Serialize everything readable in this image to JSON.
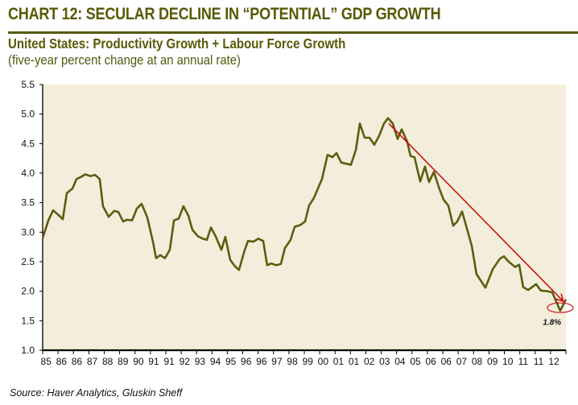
{
  "header": {
    "title": "CHART 12: SECULAR DECLINE IN “POTENTIAL” GDP GROWTH",
    "subtitle": "United States: Productivity Growth + Labour Force Growth",
    "subtitle2": "(five-year percent change at an annual rate)"
  },
  "source": "Source: Haver Analytics, Gluskin Sheff",
  "colors": {
    "title": "#585a06",
    "line": "#5a5e10",
    "plot_bg": "#f3eedb",
    "arrow": "#cc1111"
  },
  "chart_data": {
    "type": "line",
    "title": "United States: Productivity Growth + Labour Force Growth",
    "xlabel": "",
    "ylabel": "",
    "ylim": [
      1.0,
      5.5
    ],
    "yticks": [
      "5.5",
      "5.0",
      "4.5",
      "4.0",
      "3.5",
      "3.0",
      "2.5",
      "2.0",
      "1.5",
      "1.0"
    ],
    "ytick_values": [
      5.5,
      5.0,
      4.5,
      4.0,
      3.5,
      3.0,
      2.5,
      2.0,
      1.5,
      1.0
    ],
    "xticks": [
      "85",
      "86",
      "86",
      "87",
      "88",
      "89",
      "90",
      "91",
      "91",
      "92",
      "93",
      "94",
      "95",
      "96",
      "96",
      "97",
      "98",
      "99",
      "00",
      "01",
      "01",
      "02",
      "03",
      "04",
      "05",
      "06",
      "06",
      "07",
      "08",
      "09",
      "10",
      "11",
      "11",
      "12"
    ],
    "xlim": [
      0,
      34
    ],
    "grid": false,
    "legend": "none",
    "series": [
      {
        "name": "Productivity Growth + Labour Force Growth",
        "x": [
          0.0,
          0.37,
          0.68,
          0.99,
          1.31,
          1.57,
          1.94,
          2.2,
          2.46,
          2.77,
          3.09,
          3.4,
          3.71,
          3.92,
          4.29,
          4.65,
          4.92,
          5.23,
          5.49,
          5.81,
          6.12,
          6.43,
          6.8,
          7.17,
          7.37,
          7.64,
          7.95,
          8.26,
          8.53,
          8.84,
          9.15,
          9.47,
          9.73,
          10.09,
          10.41,
          10.67,
          10.93,
          11.24,
          11.61,
          11.87,
          12.19,
          12.5,
          12.76,
          13.08,
          13.34,
          13.7,
          14.02,
          14.33,
          14.59,
          14.85,
          15.17,
          15.48,
          15.74,
          16.11,
          16.37,
          16.74,
          17.05,
          17.31,
          17.63,
          18.15,
          18.51,
          18.83,
          19.09,
          19.4,
          20.03,
          20.35,
          20.61,
          20.92,
          21.23,
          21.55,
          21.86,
          22.18,
          22.44,
          22.75,
          23.06,
          23.33,
          23.69,
          23.9,
          24.16,
          24.53,
          24.84,
          25.1,
          25.42,
          25.73,
          26.05,
          26.36,
          26.67,
          26.94,
          27.25,
          27.88,
          28.19,
          28.77,
          29.24,
          29.71,
          29.97,
          30.28,
          30.7,
          30.96,
          31.22,
          31.54,
          32.06,
          32.37,
          32.79,
          33.11,
          33.63,
          34.0
        ],
        "values": [
          2.9,
          3.2,
          3.37,
          3.3,
          3.22,
          3.66,
          3.74,
          3.9,
          3.93,
          3.98,
          3.95,
          3.97,
          3.9,
          3.44,
          3.26,
          3.36,
          3.34,
          3.18,
          3.21,
          3.2,
          3.4,
          3.48,
          3.25,
          2.83,
          2.56,
          2.61,
          2.56,
          2.7,
          3.2,
          3.23,
          3.44,
          3.28,
          3.04,
          2.93,
          2.89,
          2.87,
          3.08,
          2.93,
          2.7,
          2.92,
          2.53,
          2.42,
          2.36,
          2.66,
          2.85,
          2.84,
          2.89,
          2.85,
          2.44,
          2.47,
          2.44,
          2.46,
          2.73,
          2.87,
          3.09,
          3.12,
          3.18,
          3.45,
          3.58,
          3.9,
          4.31,
          4.27,
          4.34,
          4.18,
          4.14,
          4.39,
          4.84,
          4.6,
          4.6,
          4.48,
          4.63,
          4.84,
          4.93,
          4.84,
          4.58,
          4.74,
          4.53,
          4.29,
          4.27,
          3.86,
          4.11,
          3.85,
          4.02,
          3.77,
          3.55,
          3.45,
          3.11,
          3.18,
          3.35,
          2.77,
          2.29,
          2.06,
          2.37,
          2.55,
          2.59,
          2.5,
          2.41,
          2.45,
          2.07,
          2.02,
          2.12,
          2.01,
          2.0,
          1.98,
          1.67,
          1.86
        ]
      }
    ],
    "annotations": [
      {
        "type": "arrow",
        "from": [
          22.49,
          4.84
        ],
        "to": [
          33.79,
          1.84
        ]
      },
      {
        "type": "ellipse",
        "center": [
          33.63,
          1.72
        ]
      },
      {
        "type": "text",
        "text": "1.8%",
        "at": [
          33.1,
          1.43
        ]
      }
    ]
  }
}
